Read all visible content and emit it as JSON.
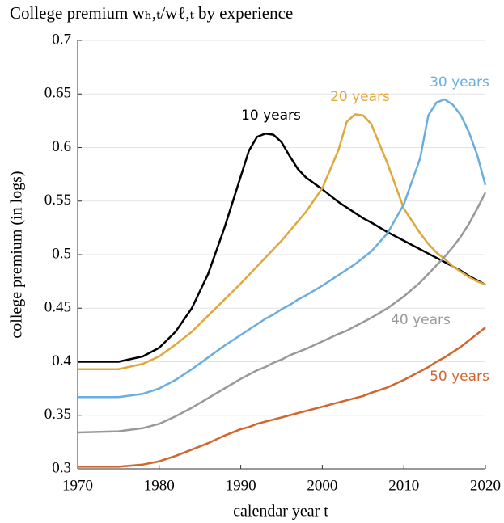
{
  "chart_data": {
    "type": "line",
    "title": "College premium wₕ,ₜ/wℓ,ₜ by experience",
    "x_label": "calendar year t",
    "y_label": "college premium (in logs)",
    "x": [
      1970,
      1975,
      1978,
      1980,
      1982,
      1984,
      1986,
      1988,
      1990,
      1991,
      1992,
      1993,
      1994,
      1995,
      1996,
      1997,
      1998,
      2000,
      2002,
      2003,
      2004,
      2005,
      2006,
      2008,
      2010,
      2012,
      2013,
      2014,
      2015,
      2016,
      2017,
      2018,
      2019,
      2020
    ],
    "series": [
      {
        "name": "10 years",
        "color": "#000000",
        "values": [
          0.4,
          0.4,
          0.405,
          0.413,
          0.428,
          0.45,
          0.482,
          0.525,
          0.573,
          0.597,
          0.61,
          0.613,
          0.612,
          0.605,
          0.592,
          0.58,
          0.572,
          0.561,
          0.549,
          0.544,
          0.539,
          0.534,
          0.53,
          0.521,
          0.513,
          0.505,
          0.501,
          0.497,
          0.493,
          0.489,
          0.485,
          0.48,
          0.476,
          0.472
        ]
      },
      {
        "name": "20 years",
        "color": "#e0a83a",
        "values": [
          0.393,
          0.393,
          0.398,
          0.405,
          0.416,
          0.428,
          0.443,
          0.458,
          0.473,
          0.481,
          0.489,
          0.497,
          0.505,
          0.513,
          0.522,
          0.531,
          0.54,
          0.562,
          0.598,
          0.624,
          0.631,
          0.63,
          0.622,
          0.585,
          0.543,
          0.52,
          0.51,
          0.502,
          0.496,
          0.489,
          0.484,
          0.479,
          0.475,
          0.472
        ]
      },
      {
        "name": "30 years",
        "color": "#6aaee0",
        "values": [
          0.367,
          0.367,
          0.37,
          0.375,
          0.383,
          0.393,
          0.404,
          0.415,
          0.425,
          0.43,
          0.435,
          0.44,
          0.444,
          0.449,
          0.453,
          0.458,
          0.462,
          0.471,
          0.481,
          0.486,
          0.491,
          0.497,
          0.503,
          0.52,
          0.547,
          0.59,
          0.63,
          0.642,
          0.645,
          0.64,
          0.63,
          0.614,
          0.593,
          0.565
        ]
      },
      {
        "name": "40 years",
        "color": "#999999",
        "values": [
          0.334,
          0.335,
          0.338,
          0.342,
          0.349,
          0.357,
          0.366,
          0.375,
          0.384,
          0.388,
          0.392,
          0.395,
          0.399,
          0.402,
          0.406,
          0.409,
          0.412,
          0.419,
          0.426,
          0.429,
          0.433,
          0.437,
          0.441,
          0.45,
          0.461,
          0.474,
          0.482,
          0.49,
          0.498,
          0.507,
          0.517,
          0.529,
          0.543,
          0.558
        ]
      },
      {
        "name": "50 years",
        "color": "#d2652d",
        "values": [
          0.302,
          0.302,
          0.304,
          0.307,
          0.312,
          0.318,
          0.324,
          0.331,
          0.337,
          0.339,
          0.342,
          0.344,
          0.346,
          0.348,
          0.35,
          0.352,
          0.354,
          0.358,
          0.362,
          0.364,
          0.366,
          0.368,
          0.371,
          0.376,
          0.383,
          0.391,
          0.395,
          0.4,
          0.404,
          0.409,
          0.414,
          0.42,
          0.426,
          0.432
        ]
      }
    ],
    "xlim": [
      1970,
      2020
    ],
    "xticks": [
      1970,
      1980,
      1990,
      2000,
      2010,
      2020
    ],
    "ylim": [
      0.3,
      0.7
    ],
    "yticks": [
      0.3,
      0.35,
      0.4,
      0.45,
      0.5,
      0.55,
      0.6,
      0.65,
      0.7
    ],
    "grid": true
  }
}
